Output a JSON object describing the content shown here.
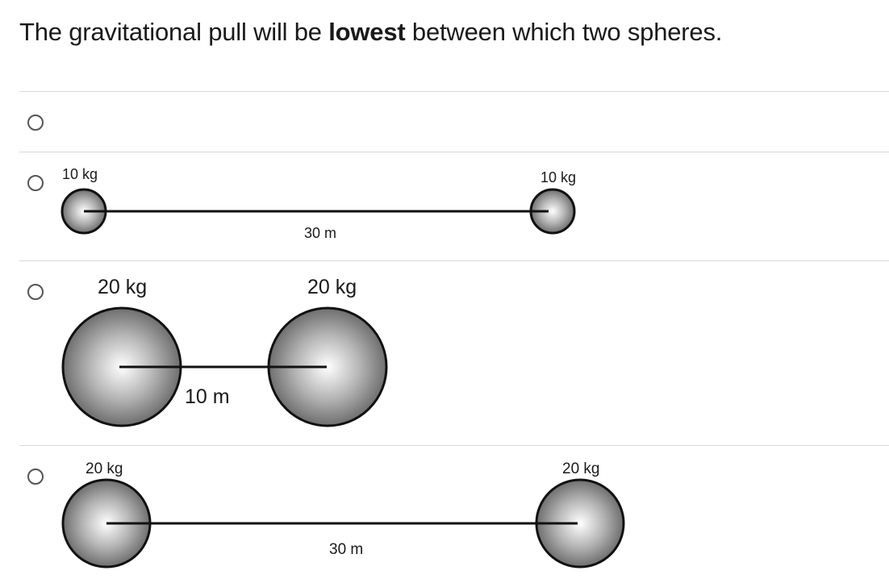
{
  "question": {
    "prefix": "The gravitational pull will be ",
    "emphasis": "lowest",
    "suffix": " between which two spheres."
  },
  "options": [
    {
      "id": "a",
      "figure": null
    },
    {
      "id": "b",
      "figure": {
        "left_mass": "10 kg",
        "right_mass": "10 kg",
        "distance": "30 m"
      }
    },
    {
      "id": "c",
      "figure": {
        "left_mass": "20 kg",
        "right_mass": "20 kg",
        "distance": "10 m"
      }
    },
    {
      "id": "d",
      "figure": {
        "left_mass": "20 kg",
        "right_mass": "20 kg",
        "distance": "30 m"
      }
    }
  ],
  "colors": {
    "sphere_edge": "#111111",
    "sphere_light": "#ffffff",
    "sphere_dark": "#6e6e6e",
    "divider": "#d8d8d8",
    "radio_border": "#555555"
  }
}
